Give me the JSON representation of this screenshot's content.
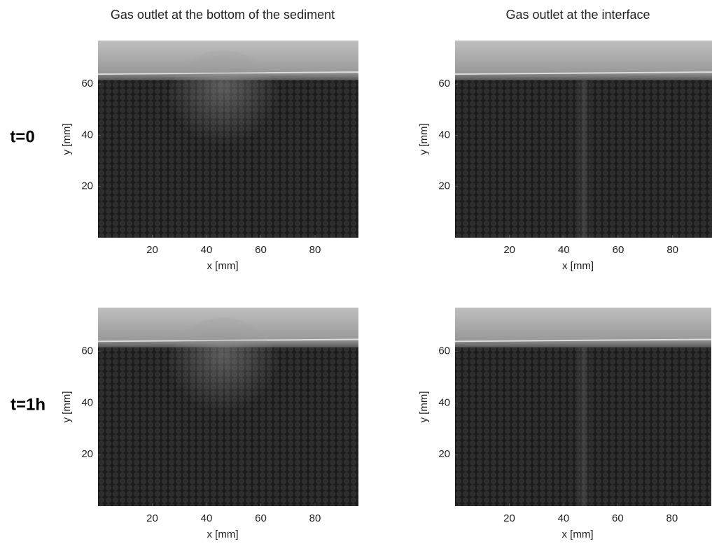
{
  "row_labels": [
    "t=0",
    "t=1h"
  ],
  "chart_data": [
    {
      "type": "image",
      "title": "Gas outlet at the bottom of the sediment",
      "xlabel": "x [mm]",
      "ylabel": "y [mm]",
      "xlim": [
        0,
        96
      ],
      "ylim": [
        0,
        77
      ],
      "xticks": [
        20,
        40,
        60,
        80
      ],
      "yticks": [
        20,
        40,
        60
      ]
    },
    {
      "type": "image",
      "title": "Gas outlet at the interface",
      "xlabel": "x [mm]",
      "ylabel": "y [mm]",
      "xlim": [
        0,
        94.5
      ],
      "ylim": [
        0,
        77
      ],
      "xticks": [
        20,
        40,
        60,
        80
      ],
      "yticks": [
        20,
        40,
        60
      ]
    },
    {
      "type": "image",
      "xlabel": "x [mm]",
      "ylabel": "y [mm]",
      "xlim": [
        0,
        96
      ],
      "ylim": [
        0,
        77
      ],
      "xticks": [
        20,
        40,
        60,
        80
      ],
      "yticks": [
        20,
        40,
        60
      ]
    },
    {
      "type": "image",
      "xlabel": "x [mm]",
      "ylabel": "y [mm]",
      "xlim": [
        0,
        94.5
      ],
      "ylim": [
        0,
        77
      ],
      "xticks": [
        20,
        40,
        60,
        80
      ],
      "yticks": [
        20,
        40,
        60
      ]
    }
  ]
}
